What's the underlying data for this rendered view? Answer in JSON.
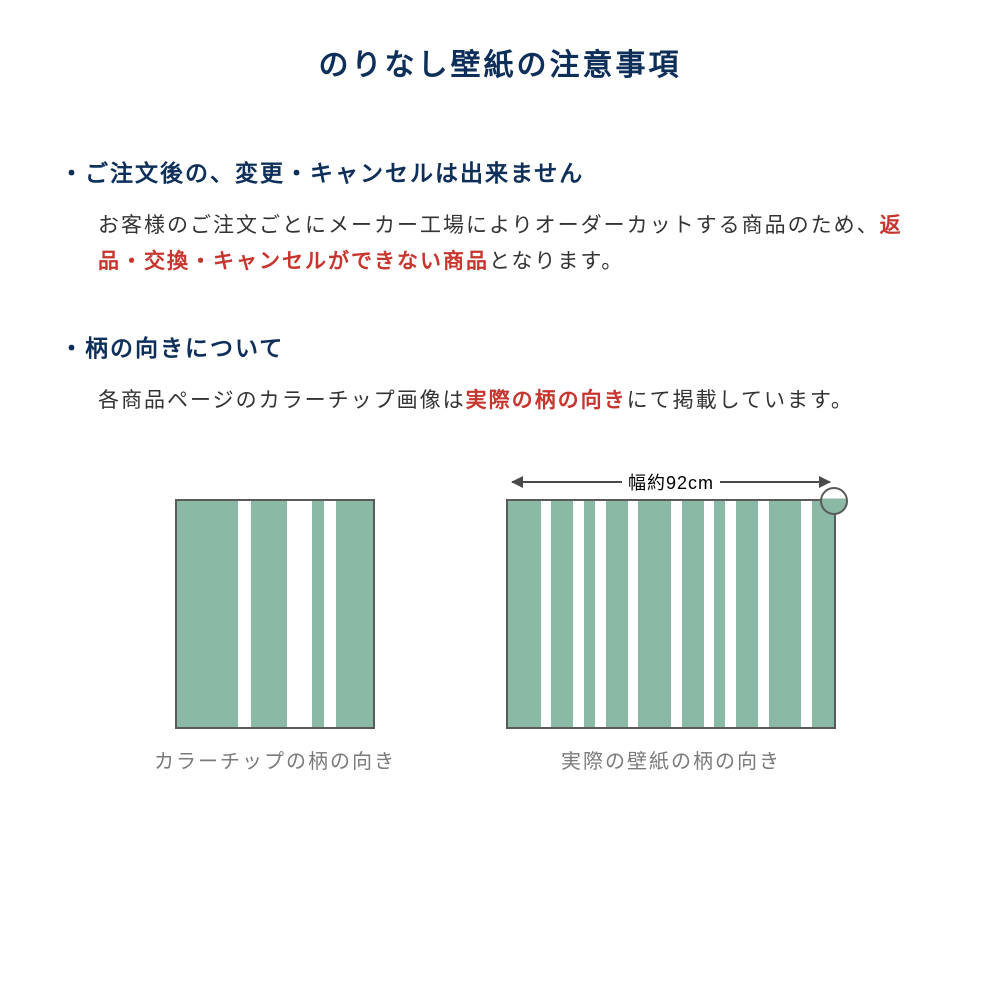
{
  "colors": {
    "title": "#0d2f5a",
    "heading": "#0d2f5a",
    "body": "#333333",
    "emphasis": "#c7362e",
    "caption": "#7a7a7a",
    "stripe": "#8ab9a5",
    "stripe_border": "#5a5a5a",
    "arrow": "#4a4a4a",
    "background": "#ffffff"
  },
  "title": "のりなし壁紙の注意事項",
  "section1": {
    "heading": "・ご注文後の、変更・キャンセルは出来ません",
    "body_pre": "お客様のご注文ごとにメーカー工場によりオーダーカットする商品のため、",
    "body_em": "返品・交換・キャンセルができない商品",
    "body_post": "となります。"
  },
  "section2": {
    "heading": "・柄の向きについて",
    "body_pre": "各商品ページのカラーチップ画像は",
    "body_em": "実際の柄の向き",
    "body_post": "にて掲載しています。"
  },
  "diagrams": {
    "chip": {
      "caption": "カラーチップの柄の向き",
      "stripes": [
        {
          "color": "stripe",
          "flex": 5
        },
        {
          "color": "white",
          "flex": 1
        },
        {
          "color": "stripe",
          "flex": 3
        },
        {
          "color": "white",
          "flex": 2
        },
        {
          "color": "stripe",
          "flex": 1
        },
        {
          "color": "white",
          "flex": 1
        },
        {
          "color": "stripe",
          "flex": 3
        }
      ]
    },
    "roll": {
      "caption": "実際の壁紙の柄の向き",
      "width_label": "幅約92cm",
      "stripes": [
        {
          "color": "stripe",
          "flex": 3
        },
        {
          "color": "white",
          "flex": 1
        },
        {
          "color": "stripe",
          "flex": 2
        },
        {
          "color": "white",
          "flex": 1
        },
        {
          "color": "stripe",
          "flex": 1
        },
        {
          "color": "white",
          "flex": 1
        },
        {
          "color": "stripe",
          "flex": 2
        },
        {
          "color": "white",
          "flex": 1
        },
        {
          "color": "stripe",
          "flex": 3
        },
        {
          "color": "white",
          "flex": 1
        },
        {
          "color": "stripe",
          "flex": 2
        },
        {
          "color": "white",
          "flex": 1
        },
        {
          "color": "stripe",
          "flex": 1
        },
        {
          "color": "white",
          "flex": 1
        },
        {
          "color": "stripe",
          "flex": 2
        },
        {
          "color": "white",
          "flex": 1
        },
        {
          "color": "stripe",
          "flex": 3
        },
        {
          "color": "white",
          "flex": 1
        },
        {
          "color": "stripe",
          "flex": 2
        }
      ]
    }
  }
}
